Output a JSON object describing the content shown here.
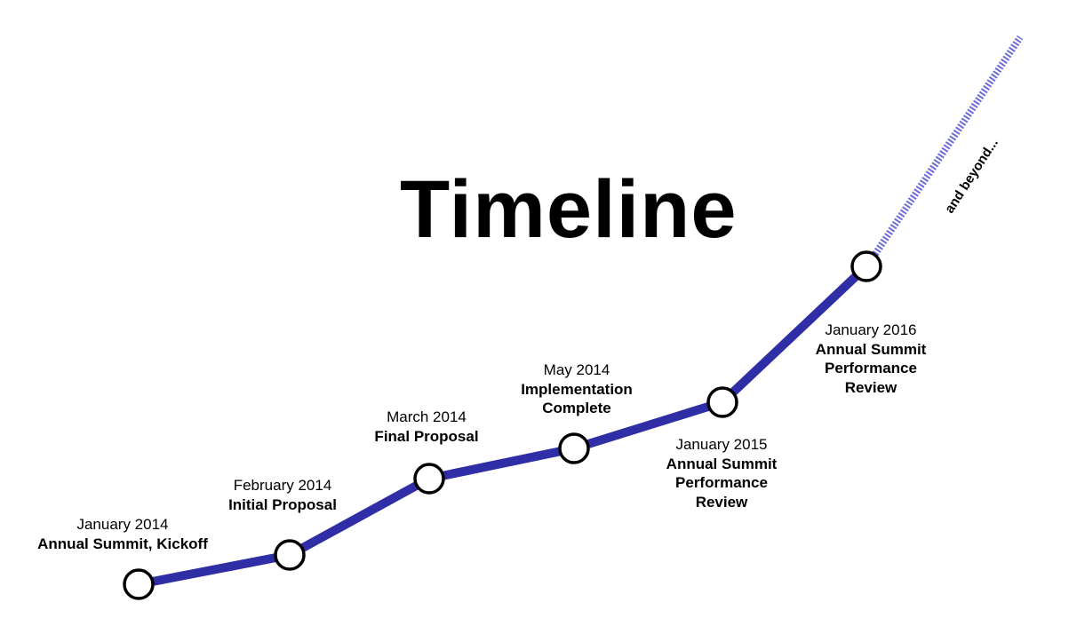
{
  "title": "Timeline",
  "beyond_label": "and beyond...",
  "colors": {
    "line": "#2f2ea6",
    "node_fill": "#ffffff",
    "node_stroke": "#000000",
    "dashed": "#6c6cd8"
  },
  "milestones": [
    {
      "date": "January 2014",
      "event_lines": [
        "Annual Summit, Kickoff"
      ]
    },
    {
      "date": "February 2014",
      "event_lines": [
        "Initial Proposal"
      ]
    },
    {
      "date": "March 2014",
      "event_lines": [
        "Final Proposal"
      ]
    },
    {
      "date": "May 2014",
      "event_lines": [
        "Implementation",
        "Complete"
      ]
    },
    {
      "date": "January 2015",
      "event_lines": [
        "Annual Summit",
        "Performance",
        "Review"
      ]
    },
    {
      "date": "January 2016",
      "event_lines": [
        "Annual Summit",
        "Performance",
        "Review"
      ]
    }
  ]
}
